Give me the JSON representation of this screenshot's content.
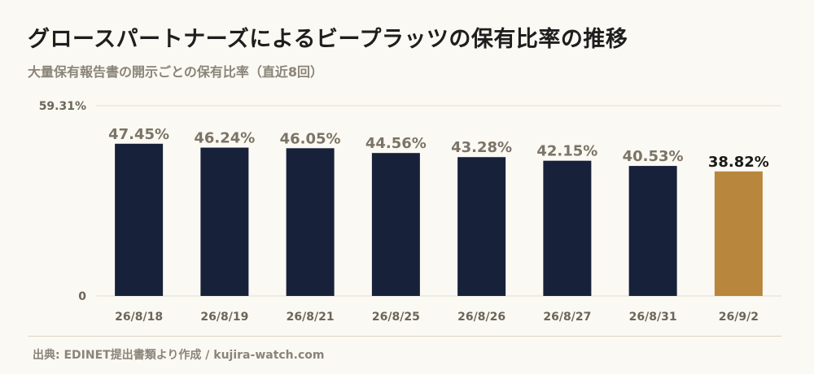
{
  "header": {
    "title": "グロースパートナーズによるビープラッツの保有比率の推移",
    "subtitle": "大量保有報告書の開示ごとの保有比率（直近8回）"
  },
  "footer": {
    "source": "出典: EDINET提出書類より作成 / kujira-watch.com"
  },
  "colors": {
    "bar": "#17213a",
    "highlight": "#b8863c",
    "value_label": "#7b7467",
    "highlight_label": "#1a1a1a",
    "grid": "#e4dece",
    "axis_text": "#6c6659"
  },
  "chart_data": {
    "type": "bar",
    "title": "グロースパートナーズによるビープラッツの保有比率の推移",
    "subtitle": "大量保有報告書の開示ごとの保有比率（直近8回）",
    "categories": [
      "26/8/18",
      "26/8/19",
      "26/8/21",
      "26/8/25",
      "26/8/26",
      "26/8/27",
      "26/8/31",
      "26/9/2"
    ],
    "values": [
      47.45,
      46.24,
      46.05,
      44.56,
      43.28,
      42.15,
      40.53,
      38.82
    ],
    "value_labels": [
      "47.45%",
      "46.24%",
      "46.05%",
      "44.56%",
      "43.28%",
      "42.15%",
      "40.53%",
      "38.82%"
    ],
    "highlight_index": 7,
    "ylim": [
      0,
      59.31
    ],
    "yticks": [
      0,
      59.31
    ],
    "ytick_labels": [
      "0",
      "59.31%"
    ],
    "grid": true,
    "legend": "none"
  }
}
